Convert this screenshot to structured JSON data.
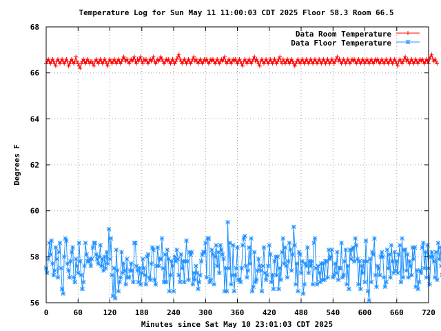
{
  "chart_data": {
    "type": "line",
    "title": "Temperature Log for Sun May 11 11:00:03 CDT 2025 Floor 58.3 Room 66.5",
    "xlabel": "Minutes since Sat May 10 23:01:03 CDT 2025",
    "ylabel": "Degrees F",
    "xlim": [
      0,
      720
    ],
    "ylim": [
      56,
      68
    ],
    "xticks": [
      0,
      60,
      120,
      180,
      240,
      300,
      360,
      420,
      480,
      540,
      600,
      660,
      720
    ],
    "yticks": [
      56,
      58,
      60,
      62,
      64,
      66,
      68
    ],
    "grid": true,
    "legend_position": "top-right",
    "x_step": 2,
    "series": [
      {
        "name": "Data Room Temperature",
        "color": "#ff0000",
        "marker": "plus",
        "values": [
          66.4,
          66.5,
          66.6,
          66.5,
          66.4,
          66.5,
          66.6,
          66.5,
          66.4,
          66.3,
          66.5,
          66.6,
          66.5,
          66.4,
          66.5,
          66.6,
          66.5,
          66.4,
          66.5,
          66.6,
          66.5,
          66.3,
          66.4,
          66.5,
          66.6,
          66.5,
          66.4,
          66.5,
          66.7,
          66.5,
          66.4,
          66.3,
          66.2,
          66.4,
          66.5,
          66.6,
          66.5,
          66.4,
          66.5,
          66.6,
          66.5,
          66.4,
          66.5,
          66.5,
          66.4,
          66.3,
          66.5,
          66.6,
          66.5,
          66.4,
          66.5,
          66.6,
          66.5,
          66.4,
          66.5,
          66.6,
          66.5,
          66.4,
          66.3,
          66.5,
          66.6,
          66.5,
          66.4,
          66.5,
          66.6,
          66.5,
          66.4,
          66.5,
          66.6,
          66.5,
          66.4,
          66.5,
          66.6,
          66.7,
          66.6,
          66.5,
          66.6,
          66.5,
          66.4,
          66.5,
          66.6,
          66.5,
          66.6,
          66.7,
          66.5,
          66.4,
          66.6,
          66.5,
          66.6,
          66.7,
          66.5,
          66.4,
          66.6,
          66.5,
          66.6,
          66.5,
          66.4,
          66.5,
          66.6,
          66.5,
          66.6,
          66.7,
          66.5,
          66.4,
          66.5,
          66.6,
          66.5,
          66.6,
          66.7,
          66.6,
          66.5,
          66.4,
          66.5,
          66.6,
          66.5,
          66.6,
          66.5,
          66.4,
          66.5,
          66.6,
          66.5,
          66.4,
          66.5,
          66.6,
          66.7,
          66.8,
          66.6,
          66.5,
          66.4,
          66.5,
          66.6,
          66.5,
          66.4,
          66.5,
          66.6,
          66.5,
          66.4,
          66.5,
          66.6,
          66.7,
          66.5,
          66.6,
          66.5,
          66.4,
          66.5,
          66.6,
          66.5,
          66.4,
          66.5,
          66.6,
          66.5,
          66.6,
          66.5,
          66.4,
          66.5,
          66.6,
          66.5,
          66.6,
          66.5,
          66.4,
          66.5,
          66.6,
          66.5,
          66.4,
          66.5,
          66.6,
          66.5,
          66.6,
          66.7,
          66.5,
          66.4,
          66.5,
          66.6,
          66.5,
          66.4,
          66.5,
          66.6,
          66.5,
          66.6,
          66.5,
          66.4,
          66.5,
          66.6,
          66.5,
          66.4,
          66.3,
          66.5,
          66.6,
          66.5,
          66.4,
          66.5,
          66.6,
          66.5,
          66.4,
          66.5,
          66.6,
          66.7,
          66.5,
          66.6,
          66.5,
          66.4,
          66.3,
          66.5,
          66.6,
          66.5,
          66.4,
          66.5,
          66.6,
          66.5,
          66.4,
          66.5,
          66.6,
          66.5,
          66.4,
          66.5,
          66.6,
          66.5,
          66.4,
          66.5,
          66.6,
          66.7,
          66.5,
          66.4,
          66.6,
          66.5,
          66.4,
          66.5,
          66.6,
          66.5,
          66.4,
          66.5,
          66.6,
          66.5,
          66.4,
          66.3,
          66.4,
          66.5,
          66.6,
          66.5,
          66.4,
          66.5,
          66.6,
          66.5,
          66.4,
          66.5,
          66.6,
          66.5,
          66.4,
          66.5,
          66.6,
          66.5,
          66.4,
          66.5,
          66.6,
          66.5,
          66.4,
          66.5,
          66.6,
          66.5,
          66.4,
          66.5,
          66.6,
          66.5,
          66.4,
          66.5,
          66.6,
          66.5,
          66.4,
          66.5,
          66.6,
          66.5,
          66.4,
          66.5,
          66.6,
          66.7,
          66.5,
          66.6,
          66.5,
          66.4,
          66.5,
          66.6,
          66.5,
          66.4,
          66.5,
          66.6,
          66.5,
          66.4,
          66.5,
          66.6,
          66.5,
          66.6,
          66.5,
          66.4,
          66.5,
          66.6,
          66.5,
          66.4,
          66.5,
          66.6,
          66.5,
          66.4,
          66.5,
          66.6,
          66.5,
          66.4,
          66.5,
          66.6,
          66.5,
          66.4,
          66.5,
          66.6,
          66.5,
          66.6,
          66.5,
          66.4,
          66.5,
          66.6,
          66.5,
          66.4,
          66.5,
          66.6,
          66.5,
          66.4,
          66.5,
          66.6,
          66.5,
          66.4,
          66.5,
          66.6,
          66.5,
          66.4,
          66.3,
          66.5,
          66.6,
          66.5,
          66.4,
          66.5,
          66.6,
          66.7,
          66.5,
          66.6,
          66.5,
          66.4,
          66.5,
          66.6,
          66.5,
          66.4,
          66.5,
          66.6,
          66.5,
          66.4,
          66.5,
          66.6,
          66.5,
          66.6,
          66.5,
          66.4,
          66.5,
          66.6,
          66.5,
          66.4,
          66.6,
          66.7,
          66.8,
          66.6,
          66.5,
          66.6,
          66.5,
          66.4
        ]
      },
      {
        "name": "Data Floor Temperature",
        "color": "#1e90ff",
        "marker": "star",
        "values": [
          57.5,
          57.3,
          57.9,
          58.6,
          58.1,
          58.7,
          57.7,
          57.2,
          57.4,
          58.4,
          57.9,
          57.1,
          58.2,
          58.6,
          57.5,
          56.6,
          56.4,
          58.0,
          58.8,
          58.7,
          57.7,
          57.4,
          57.1,
          57.8,
          58.2,
          58.4,
          57.1,
          56.9,
          57.9,
          57.6,
          57.3,
          58.6,
          57.8,
          57.2,
          56.6,
          56.9,
          57.6,
          58.6,
          58.1,
          57.8,
          57.8,
          57.9,
          57.6,
          57.9,
          58.4,
          58.6,
          58.6,
          58.1,
          57.9,
          57.7,
          58.0,
          58.5,
          57.6,
          57.9,
          57.4,
          58.0,
          57.5,
          58.2,
          57.7,
          59.2,
          57.9,
          58.8,
          57.2,
          56.3,
          57.5,
          56.2,
          58.3,
          57.4,
          56.5,
          56.9,
          57.1,
          58.2,
          57.3,
          57.7,
          57.4,
          56.8,
          57.9,
          57.1,
          57.1,
          57.4,
          57.7,
          57.4,
          56.9,
          58.6,
          58.6,
          57.6,
          57.4,
          56.9,
          57.5,
          56.8,
          57.3,
          57.9,
          57.5,
          57.2,
          56.8,
          58.0,
          58.1,
          57.1,
          57.0,
          57.7,
          58.4,
          58.3,
          57.0,
          56.8,
          57.6,
          58.4,
          57.6,
          57.9,
          57.9,
          58.8,
          57.5,
          56.9,
          58.1,
          56.9,
          58.3,
          57.9,
          56.5,
          57.2,
          57.8,
          57.6,
          56.5,
          58.0,
          57.8,
          58.3,
          57.9,
          57.2,
          56.9,
          58.1,
          57.5,
          57.8,
          56.9,
          57.8,
          58.7,
          57.8,
          57.0,
          58.2,
          58.1,
          58.2,
          56.8,
          57.3,
          57.0,
          57.6,
          57.3,
          56.6,
          56.9,
          57.2,
          57.8,
          58.1,
          58.2,
          58.2,
          58.6,
          57.1,
          58.8,
          58.8,
          56.9,
          57.0,
          58.3,
          58.1,
          56.8,
          58.0,
          58.5,
          57.6,
          58.2,
          57.3,
          58.5,
          58.3,
          58.1,
          57.9,
          56.5,
          57.5,
          56.5,
          59.5,
          57.5,
          58.6,
          56.8,
          57.2,
          58.5,
          56.5,
          57.2,
          57.5,
          58.4,
          57.0,
          57.0,
          56.9,
          57.5,
          58.5,
          58.8,
          58.9,
          57.6,
          57.1,
          57.4,
          58.4,
          57.7,
          58.8,
          56.5,
          56.7,
          58.2,
          56.9,
          57.0,
          57.4,
          57.9,
          57.6,
          57.4,
          56.5,
          57.6,
          58.4,
          57.3,
          57.0,
          57.2,
          57.6,
          58.5,
          58.1,
          56.9,
          57.2,
          56.6,
          57.8,
          58.0,
          57.2,
          58.0,
          56.6,
          57.5,
          57.0,
          58.2,
          58.8,
          57.7,
          58.4,
          57.6,
          57.1,
          57.8,
          58.6,
          58.3,
          57.4,
          58.1,
          59.3,
          58.5,
          56.8,
          57.7,
          56.5,
          58.2,
          58.1,
          57.3,
          57.8,
          56.4,
          56.8,
          57.7,
          57.6,
          58.4,
          57.3,
          57.8,
          57.6,
          57.8,
          56.8,
          58.6,
          58.8,
          57.5,
          56.8,
          57.6,
          57.3,
          56.9,
          57.7,
          57.0,
          57.7,
          57.0,
          57.8,
          57.8,
          57.1,
          58.3,
          57.9,
          58.0,
          58.3,
          57.1,
          57.2,
          57.7,
          57.3,
          58.2,
          57.0,
          57.5,
          57.5,
          58.6,
          57.1,
          57.2,
          57.8,
          58.3,
          56.8,
          57.6,
          56.6,
          58.3,
          57.9,
          58.3,
          58.4,
          57.8,
          58.8,
          58.5,
          57.9,
          56.8,
          57.8,
          56.6,
          57.6,
          57.3,
          57.8,
          56.9,
          58.7,
          57.8,
          56.5,
          56.1,
          57.9,
          56.9,
          58.2,
          58.1,
          58.8,
          57.2,
          56.7,
          57.6,
          57.5,
          57.2,
          58.0,
          58.2,
          58.0,
          57.1,
          56.7,
          56.9,
          58.3,
          57.5,
          58.1,
          57.1,
          58.5,
          57.8,
          57.3,
          58.2,
          57.4,
          57.8,
          57.3,
          58.1,
          58.5,
          56.9,
          58.8,
          57.1,
          58.3,
          58.3,
          57.4,
          58.1,
          57.1,
          57.8,
          57.6,
          57.2,
          58.4,
          57.9,
          58.4,
          56.7,
          57.4,
          56.6,
          56.9,
          57.4,
          57.3,
          58.4,
          58.6,
          57.5,
          58.2,
          57.1,
          58.5,
          57.5,
          56.8,
          58.0,
          58.2,
          58.0,
          57.8,
          57.1,
          58.2,
          57.0,
          58.6,
          57.9,
          58.4,
          57.6,
          57.2,
          57.4,
          57.1,
          57.6,
          58.5,
          58.6,
          57.1,
          58.7,
          56.9,
          58.2,
          57.6,
          56.7,
          57.4,
          57.8,
          58.3,
          58.1,
          58.3,
          57.0,
          57.9,
          58.4,
          58.1
        ]
      }
    ]
  }
}
